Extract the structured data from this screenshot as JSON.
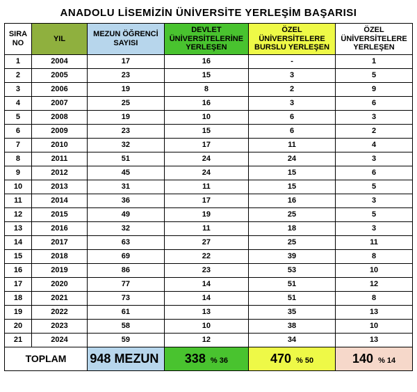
{
  "title": "ANADOLU LİSEMİZİN  ÜNİVERSİTE YERLEŞİM BAŞARISI",
  "columns": {
    "sira": {
      "label": "SIRA NO",
      "bg": "#ffffff"
    },
    "yil": {
      "label": "YIL",
      "bg": "#8fb03e"
    },
    "mezun": {
      "label": "MEZUN ÖĞRENCİ SAYISI",
      "bg": "#b7d6ec"
    },
    "devlet": {
      "label": "DEVLET ÜNİVERSİTELERİNE YERLEŞEN",
      "bg": "#49c32f"
    },
    "burslu": {
      "label": "ÖZEL ÜNİVERSİTELERE BURSLU YERLEŞEN",
      "bg": "#eef947"
    },
    "ozel": {
      "label": "ÖZEL ÜNİVERSİTELERE YERLEŞEN",
      "bg": "#ffffff"
    }
  },
  "rows": [
    {
      "sira": "1",
      "yil": "2004",
      "mezun": "17",
      "devlet": "16",
      "burslu": "-",
      "ozel": "1"
    },
    {
      "sira": "2",
      "yil": "2005",
      "mezun": "23",
      "devlet": "15",
      "burslu": "3",
      "ozel": "5"
    },
    {
      "sira": "3",
      "yil": "2006",
      "mezun": "19",
      "devlet": "8",
      "burslu": "2",
      "ozel": "9"
    },
    {
      "sira": "4",
      "yil": "2007",
      "mezun": "25",
      "devlet": "16",
      "burslu": "3",
      "ozel": "6"
    },
    {
      "sira": "5",
      "yil": "2008",
      "mezun": "19",
      "devlet": "10",
      "burslu": "6",
      "ozel": "3"
    },
    {
      "sira": "6",
      "yil": "2009",
      "mezun": "23",
      "devlet": "15",
      "burslu": "6",
      "ozel": "2"
    },
    {
      "sira": "7",
      "yil": "2010",
      "mezun": "32",
      "devlet": "17",
      "burslu": "11",
      "ozel": "4"
    },
    {
      "sira": "8",
      "yil": "2011",
      "mezun": "51",
      "devlet": "24",
      "burslu": "24",
      "ozel": "3"
    },
    {
      "sira": "9",
      "yil": "2012",
      "mezun": "45",
      "devlet": "24",
      "burslu": "15",
      "ozel": "6"
    },
    {
      "sira": "10",
      "yil": "2013",
      "mezun": "31",
      "devlet": "11",
      "burslu": "15",
      "ozel": "5"
    },
    {
      "sira": "11",
      "yil": "2014",
      "mezun": "36",
      "devlet": "17",
      "burslu": "16",
      "ozel": "3"
    },
    {
      "sira": "12",
      "yil": "2015",
      "mezun": "49",
      "devlet": "19",
      "burslu": "25",
      "ozel": "5"
    },
    {
      "sira": "13",
      "yil": "2016",
      "mezun": "32",
      "devlet": "11",
      "burslu": "18",
      "ozel": "3"
    },
    {
      "sira": "14",
      "yil": "2017",
      "mezun": "63",
      "devlet": "27",
      "burslu": "25",
      "ozel": "11"
    },
    {
      "sira": "15",
      "yil": "2018",
      "mezun": "69",
      "devlet": "22",
      "burslu": "39",
      "ozel": "8"
    },
    {
      "sira": "16",
      "yil": "2019",
      "mezun": "86",
      "devlet": "23",
      "burslu": "53",
      "ozel": "10"
    },
    {
      "sira": "17",
      "yil": "2020",
      "mezun": "77",
      "devlet": "14",
      "burslu": "51",
      "ozel": "12"
    },
    {
      "sira": "18",
      "yil": "2021",
      "mezun": "73",
      "devlet": "14",
      "burslu": "51",
      "ozel": "8"
    },
    {
      "sira": "19",
      "yil": "2022",
      "mezun": "61",
      "devlet": "13",
      "burslu": "35",
      "ozel": "13"
    },
    {
      "sira": "20",
      "yil": "2023",
      "mezun": "58",
      "devlet": "10",
      "burslu": "38",
      "ozel": "10"
    },
    {
      "sira": "21",
      "yil": "2024",
      "mezun": "59",
      "devlet": "12",
      "burslu": "34",
      "ozel": "13"
    }
  ],
  "totals": {
    "label": "TOPLAM",
    "mezun": {
      "value": "948 MEZUN",
      "pct": "",
      "bg": "#b7d6ec"
    },
    "devlet": {
      "value": "338",
      "pct": "% 36",
      "bg": "#49c32f"
    },
    "burslu": {
      "value": "470",
      "pct": "% 50",
      "bg": "#eef947"
    },
    "ozel": {
      "value": "140",
      "pct": "% 14",
      "bg": "#f6d8ca"
    }
  }
}
